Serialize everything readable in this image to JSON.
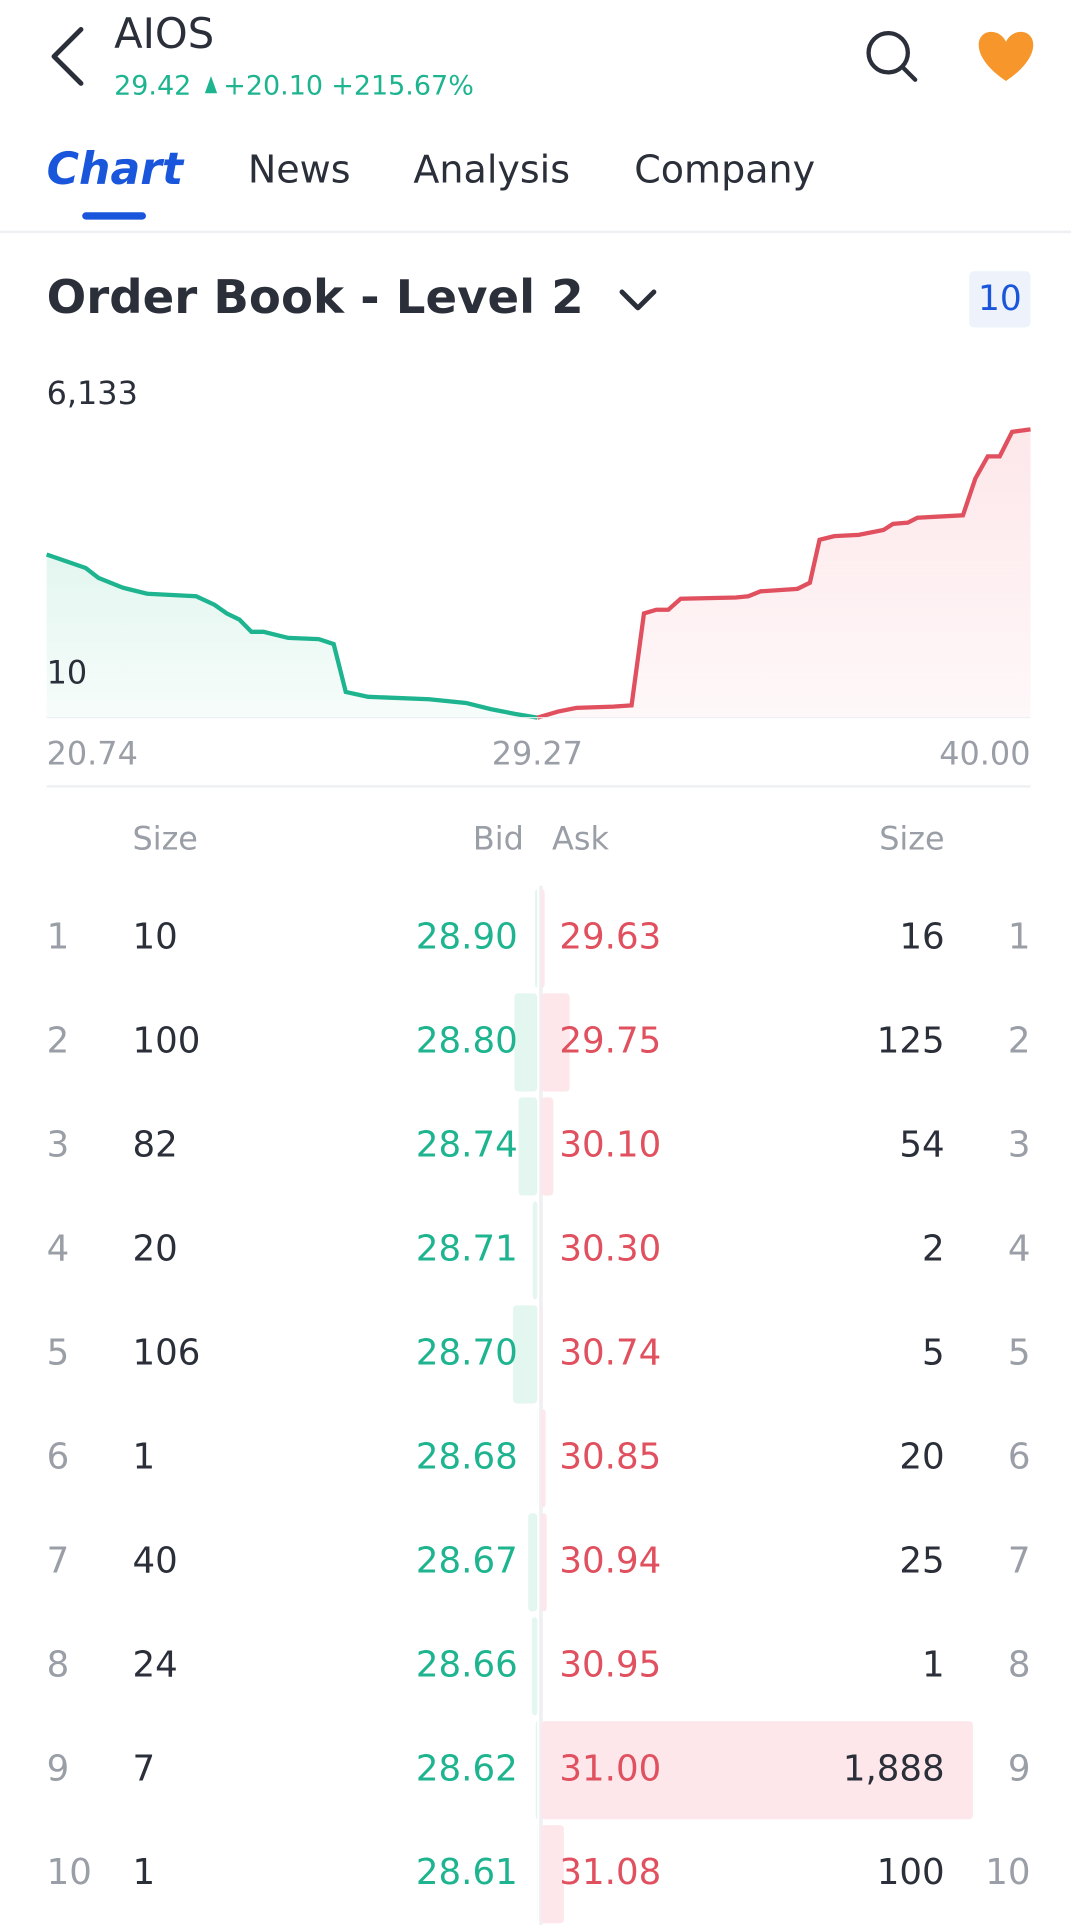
{
  "header": {
    "symbol": "AIOS",
    "price": "29.42",
    "change": "+20.10",
    "change_pct": "+215.67%"
  },
  "tabs": [
    "Chart",
    "News",
    "Analysis",
    "Company"
  ],
  "section": {
    "title": "Order Book - Level 2",
    "depth_badge": "10"
  },
  "chart_data": {
    "type": "area",
    "ylim": [
      10,
      6133
    ],
    "yticks": [
      {
        "value": 6133,
        "label": "6,133"
      },
      10
    ],
    "xlim": [
      20.74,
      40
    ],
    "xticks": [
      20.74,
      29.27,
      {
        "value": 40,
        "label": "40.00"
      }
    ],
    "series": [
      {
        "name": "Bid",
        "color": "#1db48f",
        "fill": "#e3f6ef",
        "x": [
          20.74,
          21.42,
          21.64,
          22.06,
          22.49,
          23.34,
          23.66,
          23.87,
          24.09,
          24.3,
          24.51,
          24.94,
          25.47,
          25.73,
          25.94,
          26.33,
          27.39,
          28.03,
          28.46,
          28.89,
          29.27
        ],
        "values": [
          3475,
          3189,
          2980,
          2772,
          2642,
          2589,
          2407,
          2225,
          2094,
          1834,
          1834,
          1704,
          1678,
          1573,
          557,
          453,
          401,
          323,
          192,
          88,
          10
        ]
      },
      {
        "name": "Ask",
        "color": "#e0505e",
        "fill": "#fde7ea",
        "x": [
          29.27,
          29.72,
          30.12,
          30.92,
          31.32,
          31.59,
          31.86,
          32.12,
          32.39,
          33.59,
          33.86,
          34.13,
          34.93,
          35.2,
          35.41,
          35.73,
          36.26,
          36.8,
          37.01,
          37.33,
          37.54,
          38.53,
          38.8,
          39.07,
          39.33,
          39.6,
          40.0
        ],
        "values": [
          10,
          140,
          218,
          244,
          271,
          2225,
          2303,
          2303,
          2537,
          2563,
          2589,
          2694,
          2746,
          2876,
          3788,
          3866,
          3892,
          3996,
          4127,
          4153,
          4257,
          4309,
          5091,
          5560,
          5560,
          6081,
          6133
        ]
      }
    ]
  },
  "table": {
    "columns": [
      "Size",
      "Bid",
      "Ask",
      "Size"
    ],
    "rows": [
      {
        "level": 1,
        "bid_size": 10,
        "bid": "28.90",
        "ask": "29.63",
        "ask_size": 16
      },
      {
        "level": 2,
        "bid_size": 100,
        "bid": "28.80",
        "ask": "29.75",
        "ask_size": 125
      },
      {
        "level": 3,
        "bid_size": 82,
        "bid": "28.74",
        "ask": "30.10",
        "ask_size": 54
      },
      {
        "level": 4,
        "bid_size": 20,
        "bid": "28.71",
        "ask": "30.30",
        "ask_size": 2
      },
      {
        "level": 5,
        "bid_size": 106,
        "bid": "28.70",
        "ask": "30.74",
        "ask_size": 5
      },
      {
        "level": 6,
        "bid_size": 1,
        "bid": "28.68",
        "ask": "30.85",
        "ask_size": 20
      },
      {
        "level": 7,
        "bid_size": 40,
        "bid": "28.67",
        "ask": "30.94",
        "ask_size": 25
      },
      {
        "level": 8,
        "bid_size": 24,
        "bid": "28.66",
        "ask": "30.95",
        "ask_size": 1
      },
      {
        "level": 9,
        "bid_size": 7,
        "bid": "28.62",
        "ask": "31.00",
        "ask_size": {
          "value": 1888,
          "label": "1,888"
        }
      },
      {
        "level": 10,
        "bid_size": 1,
        "bid": "28.61",
        "ask": "31.08",
        "ask_size": 100
      }
    ]
  }
}
